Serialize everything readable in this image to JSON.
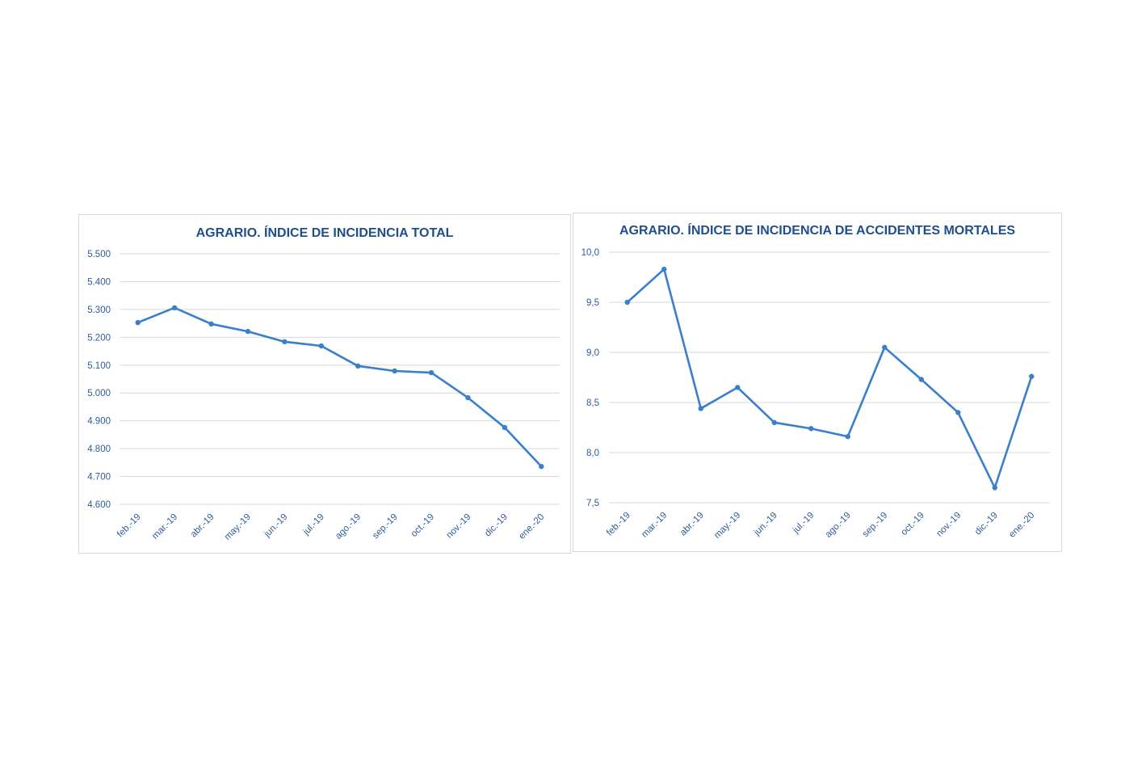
{
  "chart_data": [
    {
      "type": "line",
      "title": "AGRARIO. ÍNDICE DE INCIDENCIA TOTAL",
      "categories": [
        "feb.-19",
        "mar.-19",
        "abr.-19",
        "may.-19",
        "jun.-19",
        "jul.-19",
        "ago.-19",
        "sep.-19",
        "oct.-19",
        "nov.-19",
        "dic.-19",
        "ene.-20"
      ],
      "values": [
        5253,
        5306,
        5248,
        5221,
        5184,
        5169,
        5097,
        5079,
        5073,
        4983,
        4876,
        4736
      ],
      "yticks": [
        "4.600",
        "4.700",
        "4.800",
        "4.900",
        "5.000",
        "5.100",
        "5.200",
        "5.300",
        "5.400",
        "5.500"
      ],
      "ylim": [
        4600,
        5500
      ],
      "xlabel": "",
      "ylabel": "",
      "grid": true,
      "color": "#3a7fca"
    },
    {
      "type": "line",
      "title": "AGRARIO. ÍNDICE DE INCIDENCIA DE ACCIDENTES MORTALES",
      "categories": [
        "feb.-19",
        "mar.-19",
        "abr.-19",
        "may.-19",
        "jun.-19",
        "jul.-19",
        "ago.-19",
        "sep.-19",
        "oct.-19",
        "nov.-19",
        "dic.-19",
        "ene.-20"
      ],
      "values": [
        9.5,
        9.83,
        8.44,
        8.65,
        8.3,
        8.24,
        8.16,
        9.05,
        8.73,
        8.4,
        7.65,
        8.76
      ],
      "yticks": [
        "7,5",
        "8,0",
        "8,5",
        "9,0",
        "9,5",
        "10,0"
      ],
      "ylim": [
        7.5,
        10.0
      ],
      "xlabel": "",
      "ylabel": "",
      "grid": true,
      "color": "#3a7fca"
    }
  ]
}
